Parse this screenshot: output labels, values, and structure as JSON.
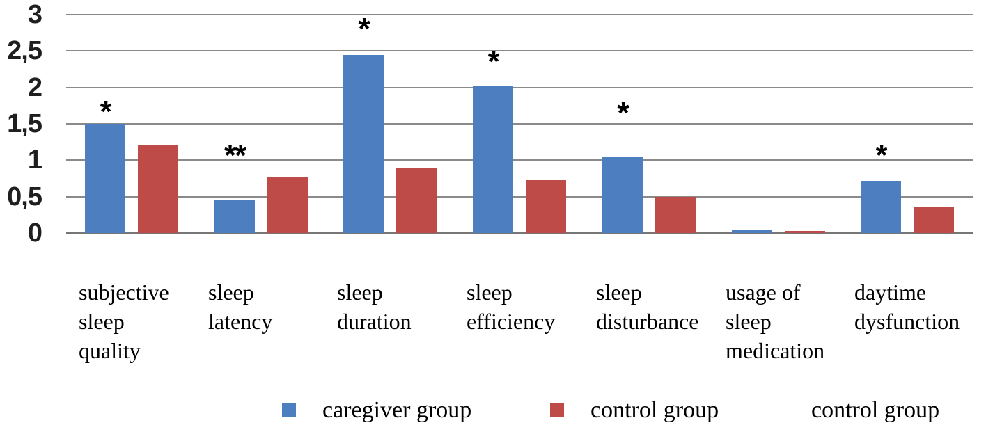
{
  "figure": {
    "background": "#ffffff",
    "gridline_color": "#8a8a8a"
  },
  "chart_data": {
    "type": "bar",
    "title": "",
    "xlabel": "",
    "ylabel": "",
    "categories": [
      "subjective sleep quality",
      "sleep latency",
      "sleep duration",
      "sleep efficiency",
      "sleep disturbance",
      "usage of sleep medication",
      "daytime dysfunction"
    ],
    "category_label_lines": [
      "subjective\nsleep\nquality",
      "sleep\nlatency",
      "sleep\nduration",
      "sleep\nefficiency",
      "sleep\ndisturbance",
      "usage of\nsleep\nmedication",
      "daytime\ndysfunction"
    ],
    "series": [
      {
        "name": "caregiver group",
        "color": "#4D7EBF",
        "values": [
          1.5,
          0.46,
          2.45,
          2.02,
          1.05,
          0.05,
          0.72
        ]
      },
      {
        "name": "control group",
        "color": "#BE4B48",
        "values": [
          1.2,
          0.77,
          0.9,
          0.73,
          0.5,
          0.03,
          0.36
        ]
      }
    ],
    "y_axis": {
      "min": 0,
      "max": 3,
      "step": 0.5,
      "tick_labels": [
        "0",
        "0,5",
        "1",
        "1,5",
        "2",
        "2,5",
        "3"
      ]
    },
    "grid": true,
    "annotations": [
      {
        "category_index": 0,
        "text": "*",
        "y_value": 1.75
      },
      {
        "category_index": 1,
        "text": "**",
        "y_value": 1.15
      },
      {
        "category_index": 2,
        "text": "*",
        "y_value": 2.89
      },
      {
        "category_index": 3,
        "text": "*",
        "y_value": 2.44
      },
      {
        "category_index": 4,
        "text": "*",
        "y_value": 1.73
      },
      {
        "category_index": 6,
        "text": "*",
        "y_value": 1.15
      }
    ],
    "legend": {
      "position": "bottom",
      "entries": [
        {
          "label": "caregiver group",
          "color": "#4D7EBF",
          "swatch": true
        },
        {
          "label": "control group",
          "color": "#BE4B48",
          "swatch": true
        },
        {
          "label": "control group",
          "color": null,
          "swatch": false
        }
      ]
    }
  }
}
